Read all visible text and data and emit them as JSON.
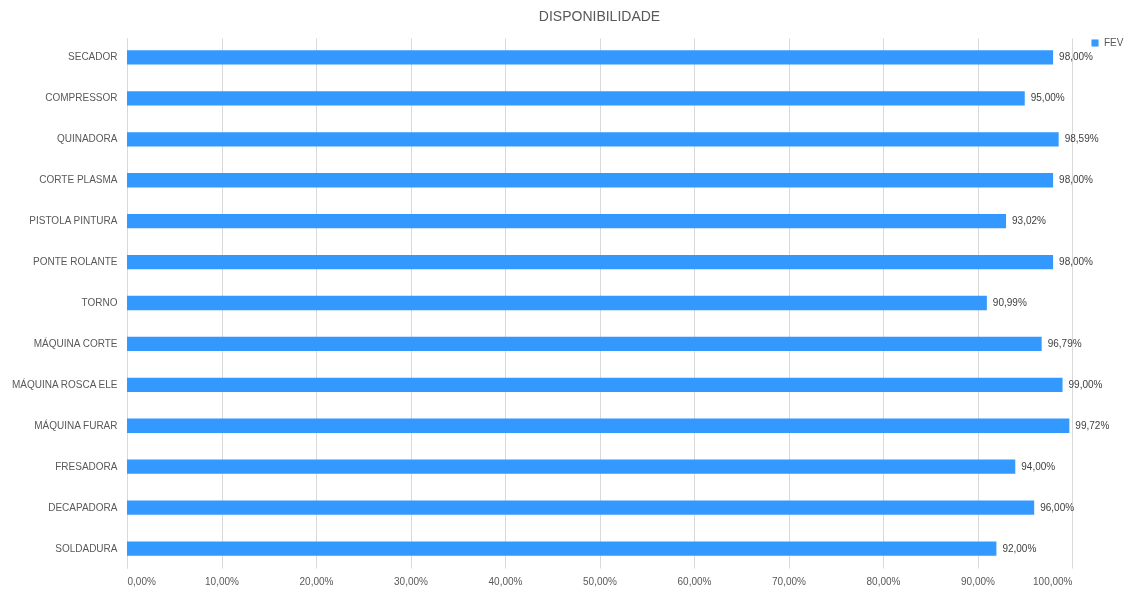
{
  "chart_data": {
    "type": "bar",
    "orientation": "horizontal",
    "title": "DISPONIBILIDADE",
    "categories": [
      "SECADOR",
      "COMPRESSOR",
      "QUINADORA",
      "CORTE PLASMA",
      "PISTOLA PINTURA",
      "PONTE ROLANTE",
      "TORNO",
      "MÁQUINA CORTE",
      "MÁQUINA ROSCA ELE",
      "MÁQUINA FURAR",
      "FRESADORA",
      "DECAPADORA",
      "SOLDADURA"
    ],
    "series": [
      {
        "name": "FEV",
        "color": "#3399ff",
        "values": [
          98.0,
          95.0,
          98.59,
          98.0,
          93.02,
          98.0,
          90.99,
          96.79,
          99.0,
          99.72,
          94.0,
          96.0,
          92.0
        ],
        "value_labels": [
          "98,00%",
          "95,00%",
          "98,59%",
          "98,00%",
          "93,02%",
          "98,00%",
          "90,99%",
          "96,79%",
          "99,00%",
          "99,72%",
          "94,00%",
          "96,00%",
          "92,00%"
        ]
      }
    ],
    "xlim": [
      0,
      100
    ],
    "xticks": [
      {
        "value": 0,
        "label": "0,00%"
      },
      {
        "value": 10,
        "label": "10,00%"
      },
      {
        "value": 20,
        "label": "20,00%"
      },
      {
        "value": 30,
        "label": "30,00%"
      },
      {
        "value": 40,
        "label": "40,00%"
      },
      {
        "value": 50,
        "label": "50,00%"
      },
      {
        "value": 60,
        "label": "60,00%"
      },
      {
        "value": 70,
        "label": "70,00%"
      },
      {
        "value": 80,
        "label": "80,00%"
      },
      {
        "value": 90,
        "label": "90,00%"
      },
      {
        "value": 100,
        "label": "100,00%"
      }
    ],
    "grid": "x",
    "legend": "right"
  }
}
